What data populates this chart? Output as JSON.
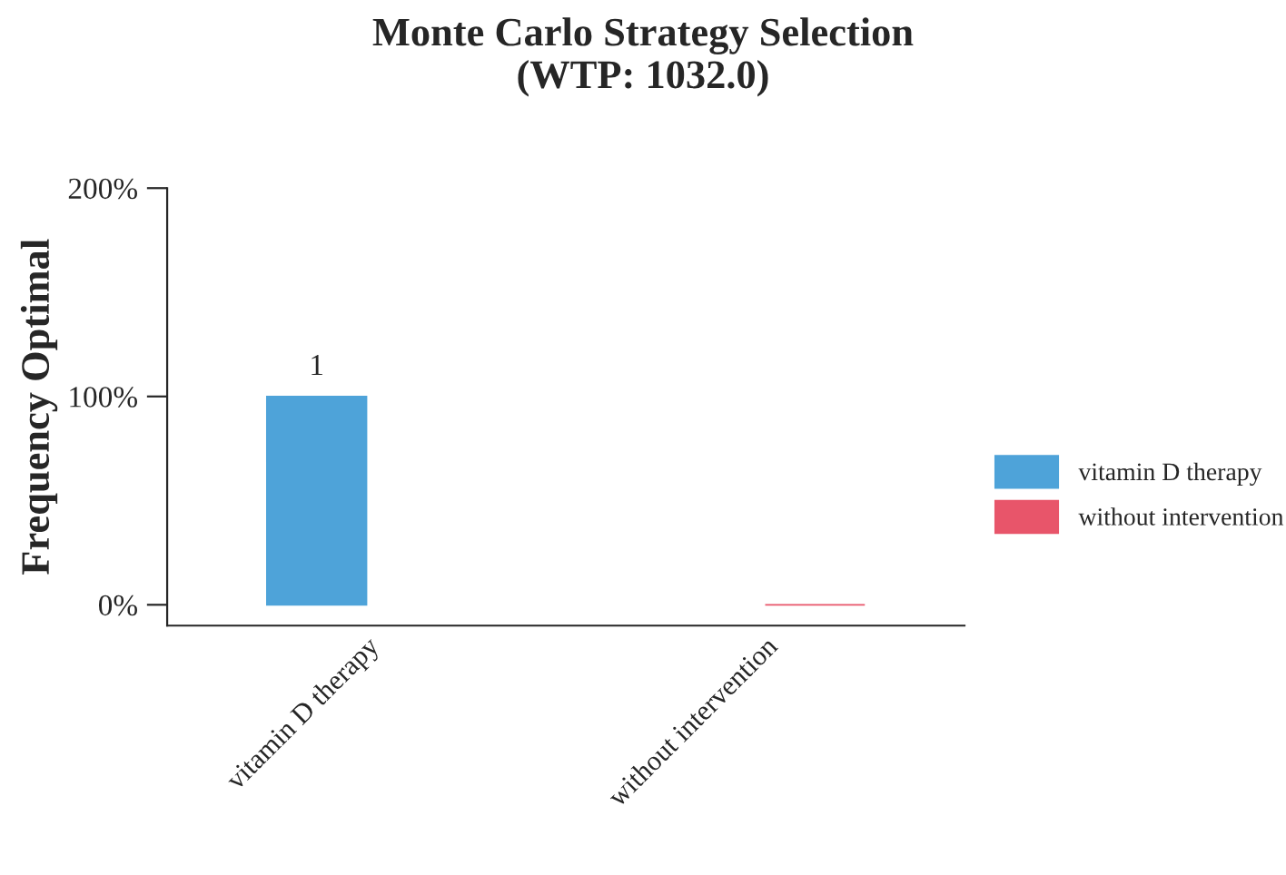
{
  "chart_data": {
    "type": "bar",
    "title": "Monte Carlo Strategy Selection\n(WTP: 1032.0)",
    "ylabel": "Frequency Optimal",
    "categories": [
      "vitamin D therapy",
      "without intervention"
    ],
    "series": [
      {
        "name": "vitamin D therapy",
        "color": "#4ea3d9",
        "values": [
          1,
          null
        ],
        "value_labels": [
          "1",
          null
        ]
      },
      {
        "name": "without intervention",
        "color": "#e8556a",
        "values": [
          null,
          0
        ],
        "value_labels": [
          null,
          null
        ]
      }
    ],
    "ylim": [
      -0.1,
      2
    ],
    "yticks": [
      {
        "value": 0,
        "label": "0%"
      },
      {
        "value": 1,
        "label": "100%"
      },
      {
        "value": 2,
        "label": "200%"
      }
    ],
    "grid": false,
    "legend": "right"
  }
}
